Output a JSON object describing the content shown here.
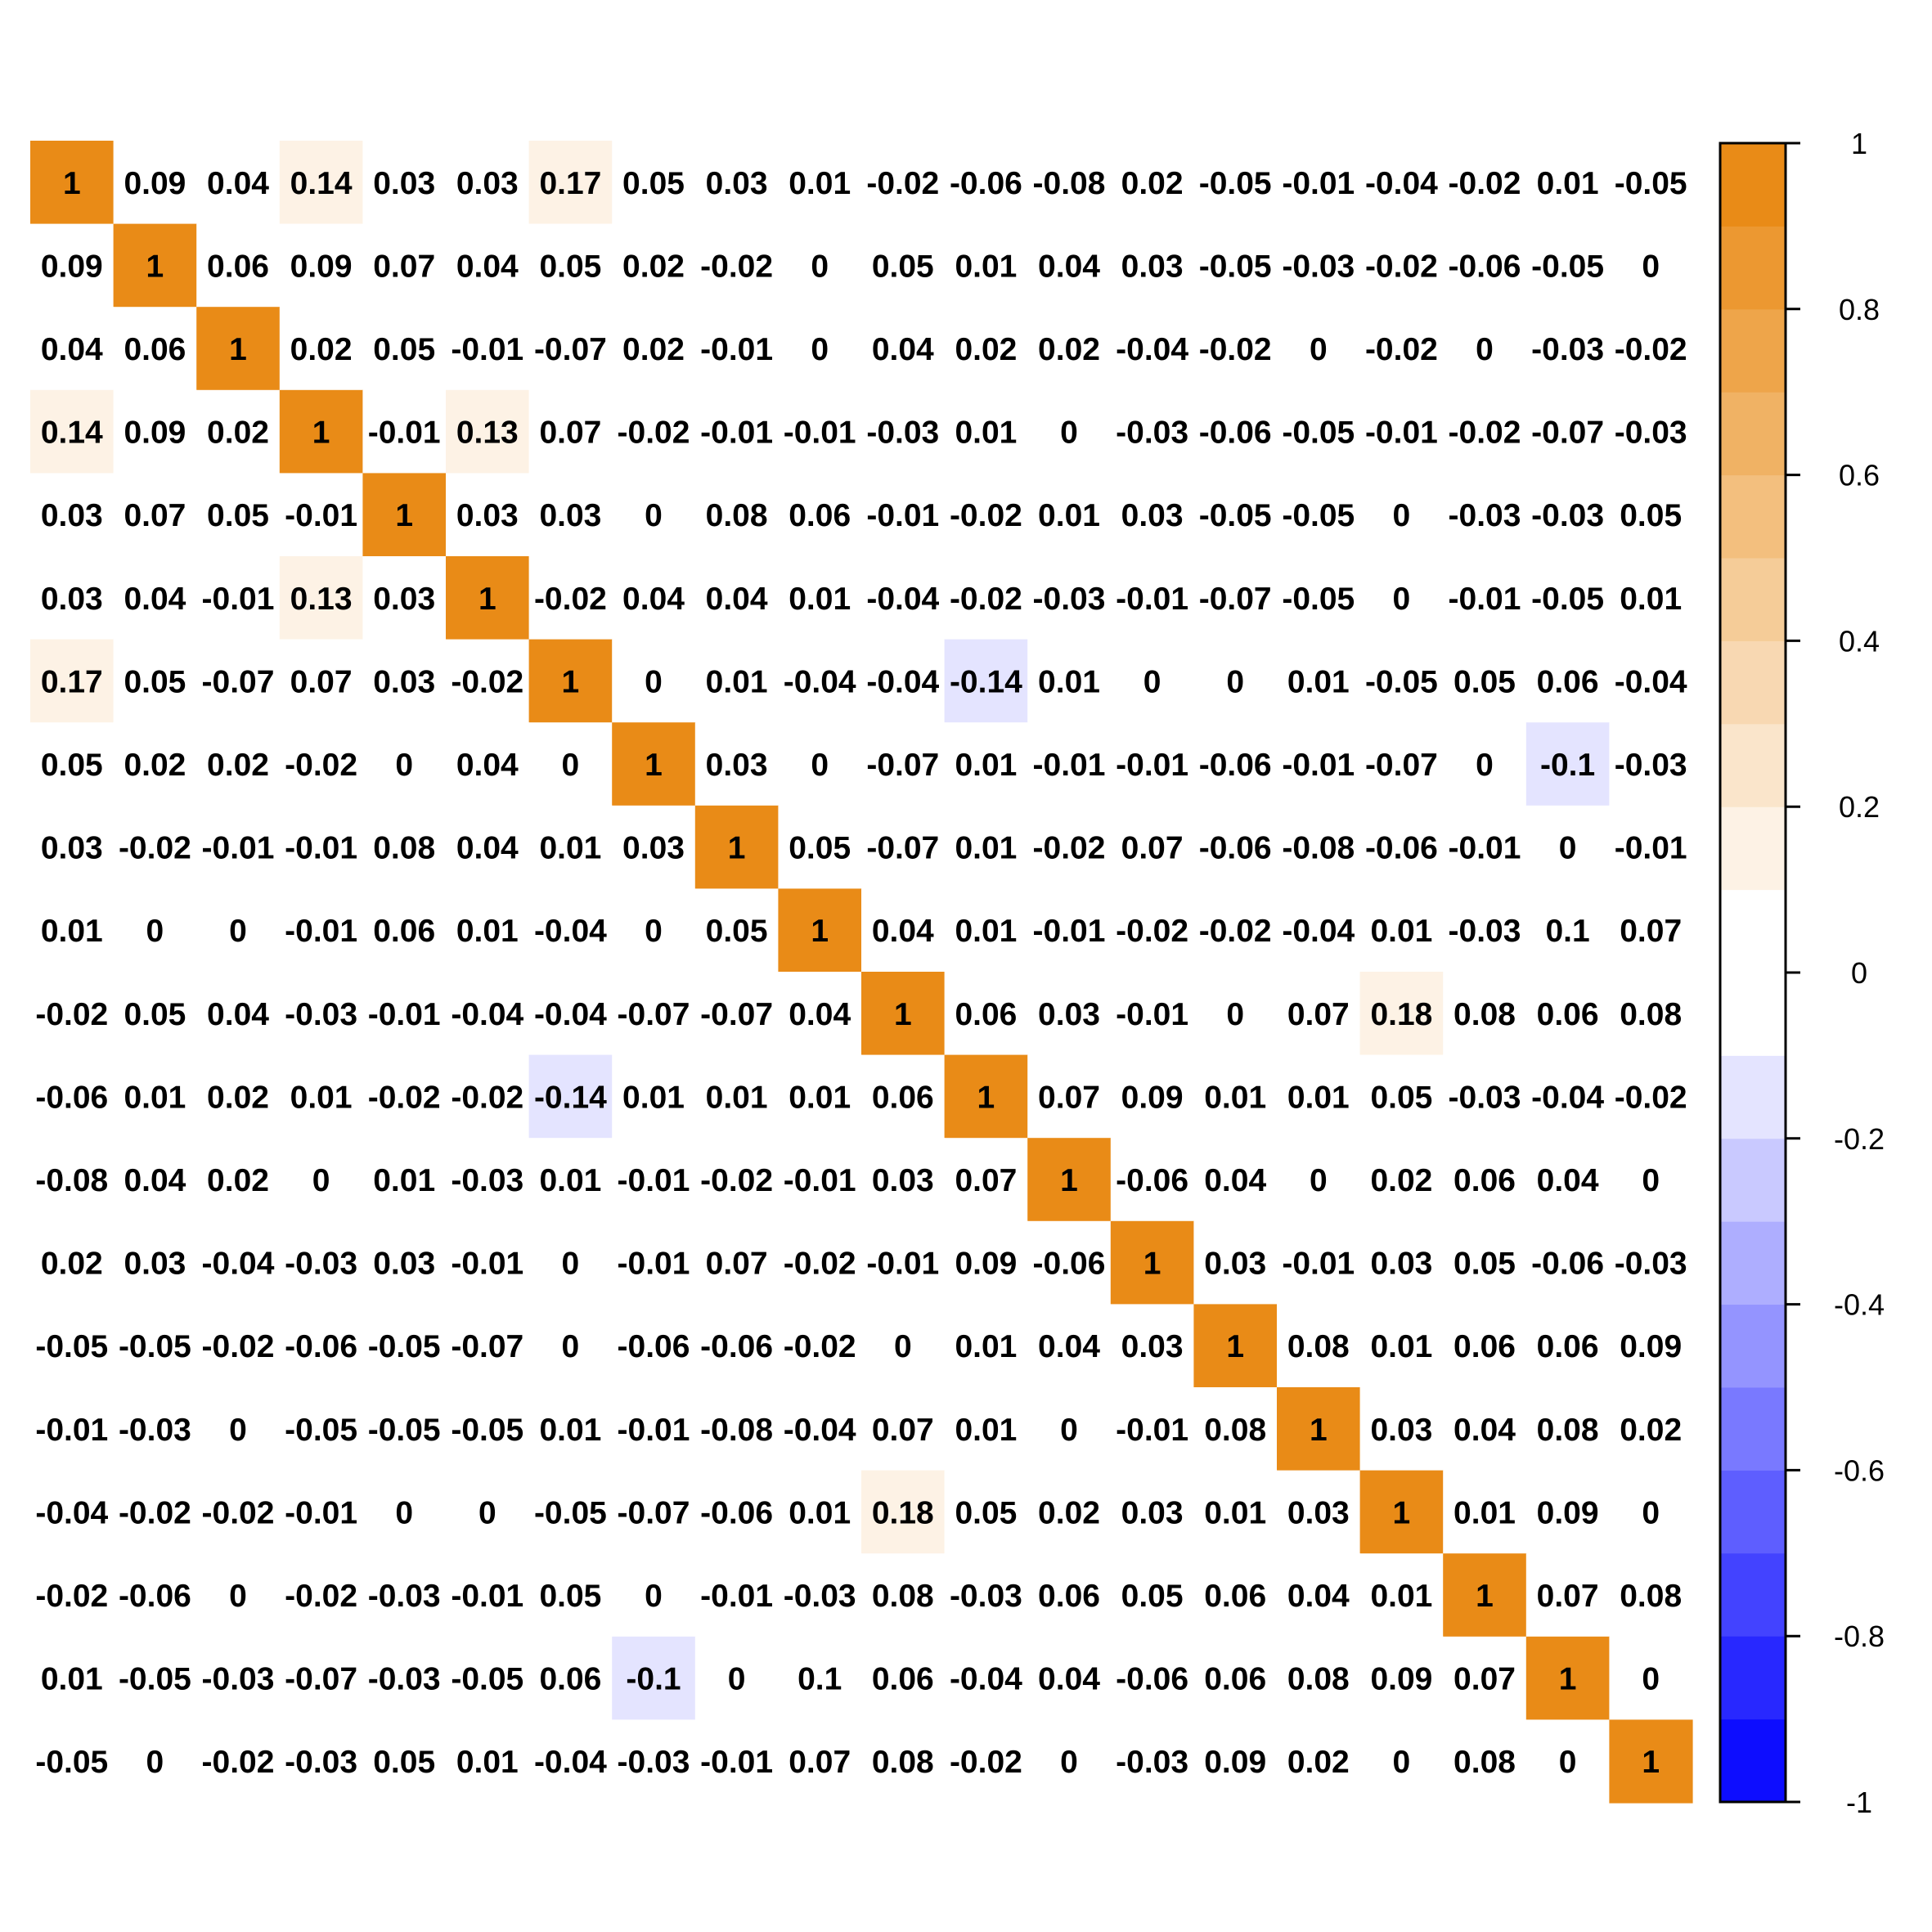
{
  "chart_data": {
    "type": "heatmap",
    "title": "",
    "xlabel": "",
    "ylabel": "",
    "row_labels": [],
    "col_labels": [],
    "matrix": [
      [
        1,
        0.09,
        0.04,
        0.14,
        0.03,
        0.03,
        0.17,
        0.05,
        0.03,
        0.01,
        -0.02,
        -0.06,
        -0.08,
        0.02,
        -0.05,
        -0.01,
        -0.04,
        -0.02,
        0.01,
        -0.05
      ],
      [
        0.09,
        1,
        0.06,
        0.09,
        0.07,
        0.04,
        0.05,
        0.02,
        -0.02,
        0,
        0.05,
        0.01,
        0.04,
        0.03,
        -0.05,
        -0.03,
        -0.02,
        -0.06,
        -0.05,
        0
      ],
      [
        0.04,
        0.06,
        1,
        0.02,
        0.05,
        -0.01,
        -0.07,
        0.02,
        -0.01,
        0,
        0.04,
        0.02,
        0.02,
        -0.04,
        -0.02,
        0,
        -0.02,
        0,
        -0.03,
        -0.02
      ],
      [
        0.14,
        0.09,
        0.02,
        1,
        -0.01,
        0.13,
        0.07,
        -0.02,
        -0.01,
        -0.01,
        -0.03,
        0.01,
        0,
        -0.03,
        -0.06,
        -0.05,
        -0.01,
        -0.02,
        -0.07,
        -0.03
      ],
      [
        0.03,
        0.07,
        0.05,
        -0.01,
        1,
        0.03,
        0.03,
        0,
        0.08,
        0.06,
        -0.01,
        -0.02,
        0.01,
        0.03,
        -0.05,
        -0.05,
        0,
        -0.03,
        -0.03,
        0.05
      ],
      [
        0.03,
        0.04,
        -0.01,
        0.13,
        0.03,
        1,
        -0.02,
        0.04,
        0.04,
        0.01,
        -0.04,
        -0.02,
        -0.03,
        -0.01,
        -0.07,
        -0.05,
        0,
        -0.01,
        -0.05,
        0.01
      ],
      [
        0.17,
        0.05,
        -0.07,
        0.07,
        0.03,
        -0.02,
        1,
        0,
        0.01,
        -0.04,
        -0.04,
        -0.14,
        0.01,
        0,
        0,
        0.01,
        -0.05,
        0.05,
        0.06,
        -0.04
      ],
      [
        0.05,
        0.02,
        0.02,
        -0.02,
        0,
        0.04,
        0,
        1,
        0.03,
        0,
        -0.07,
        0.01,
        -0.01,
        -0.01,
        -0.06,
        -0.01,
        -0.07,
        0,
        -0.1,
        -0.03
      ],
      [
        0.03,
        -0.02,
        -0.01,
        -0.01,
        0.08,
        0.04,
        0.01,
        0.03,
        1,
        0.05,
        -0.07,
        0.01,
        -0.02,
        0.07,
        -0.06,
        -0.08,
        -0.06,
        -0.01,
        0,
        -0.01
      ],
      [
        0.01,
        0,
        0,
        -0.01,
        0.06,
        0.01,
        -0.04,
        0,
        0.05,
        1,
        0.04,
        0.01,
        -0.01,
        -0.02,
        -0.02,
        -0.04,
        0.01,
        -0.03,
        0.1,
        0.07
      ],
      [
        -0.02,
        0.05,
        0.04,
        -0.03,
        -0.01,
        -0.04,
        -0.04,
        -0.07,
        -0.07,
        0.04,
        1,
        0.06,
        0.03,
        -0.01,
        0,
        0.07,
        0.18,
        0.08,
        0.06,
        0.08
      ],
      [
        -0.06,
        0.01,
        0.02,
        0.01,
        -0.02,
        -0.02,
        -0.14,
        0.01,
        0.01,
        0.01,
        0.06,
        1,
        0.07,
        0.09,
        0.01,
        0.01,
        0.05,
        -0.03,
        -0.04,
        -0.02
      ],
      [
        -0.08,
        0.04,
        0.02,
        0,
        0.01,
        -0.03,
        0.01,
        -0.01,
        -0.02,
        -0.01,
        0.03,
        0.07,
        1,
        -0.06,
        0.04,
        0,
        0.02,
        0.06,
        0.04,
        0
      ],
      [
        0.02,
        0.03,
        -0.04,
        -0.03,
        0.03,
        -0.01,
        0,
        -0.01,
        0.07,
        -0.02,
        -0.01,
        0.09,
        -0.06,
        1,
        0.03,
        -0.01,
        0.03,
        0.05,
        -0.06,
        -0.03
      ],
      [
        -0.05,
        -0.05,
        -0.02,
        -0.06,
        -0.05,
        -0.07,
        0,
        -0.06,
        -0.06,
        -0.02,
        0,
        0.01,
        0.04,
        0.03,
        1,
        0.08,
        0.01,
        0.06,
        0.06,
        0.09
      ],
      [
        -0.01,
        -0.03,
        0,
        -0.05,
        -0.05,
        -0.05,
        0.01,
        -0.01,
        -0.08,
        -0.04,
        0.07,
        0.01,
        0,
        -0.01,
        0.08,
        1,
        0.03,
        0.04,
        0.08,
        0.02
      ],
      [
        -0.04,
        -0.02,
        -0.02,
        -0.01,
        0,
        0,
        -0.05,
        -0.07,
        -0.06,
        0.01,
        0.18,
        0.05,
        0.02,
        0.03,
        0.01,
        0.03,
        1,
        0.01,
        0.09,
        0
      ],
      [
        -0.02,
        -0.06,
        0,
        -0.02,
        -0.03,
        -0.01,
        0.05,
        0,
        -0.01,
        -0.03,
        0.08,
        -0.03,
        0.06,
        0.05,
        0.06,
        0.04,
        0.01,
        1,
        0.07,
        0.08
      ],
      [
        0.01,
        -0.05,
        -0.03,
        -0.07,
        -0.03,
        -0.05,
        0.06,
        -0.1,
        0,
        0.1,
        0.06,
        -0.04,
        0.04,
        -0.06,
        0.06,
        0.08,
        0.09,
        0.07,
        1,
        0
      ],
      [
        -0.05,
        0,
        -0.02,
        -0.03,
        0.05,
        0.01,
        -0.04,
        -0.03,
        -0.01,
        0.07,
        0.08,
        -0.02,
        0,
        -0.03,
        0.09,
        0.02,
        0,
        0.08,
        0,
        1
      ]
    ],
    "colorbar": {
      "range": [
        -1,
        1
      ],
      "ticks": [
        -1,
        -0.8,
        -0.6,
        -0.4,
        -0.2,
        0,
        0.2,
        0.4,
        0.6,
        0.8,
        1
      ],
      "tick_labels": [
        "-1",
        "-0.8",
        "-0.6",
        "-0.4",
        "-0.2",
        "0",
        "0.2",
        "0.4",
        "0.6",
        "0.8",
        "1"
      ],
      "steps": 20,
      "low_color": "#0000FF",
      "mid_color": "#FFFFFF",
      "high_color": "#E8850A",
      "position": "right"
    },
    "grid": false,
    "legend": "colorbar-right"
  }
}
